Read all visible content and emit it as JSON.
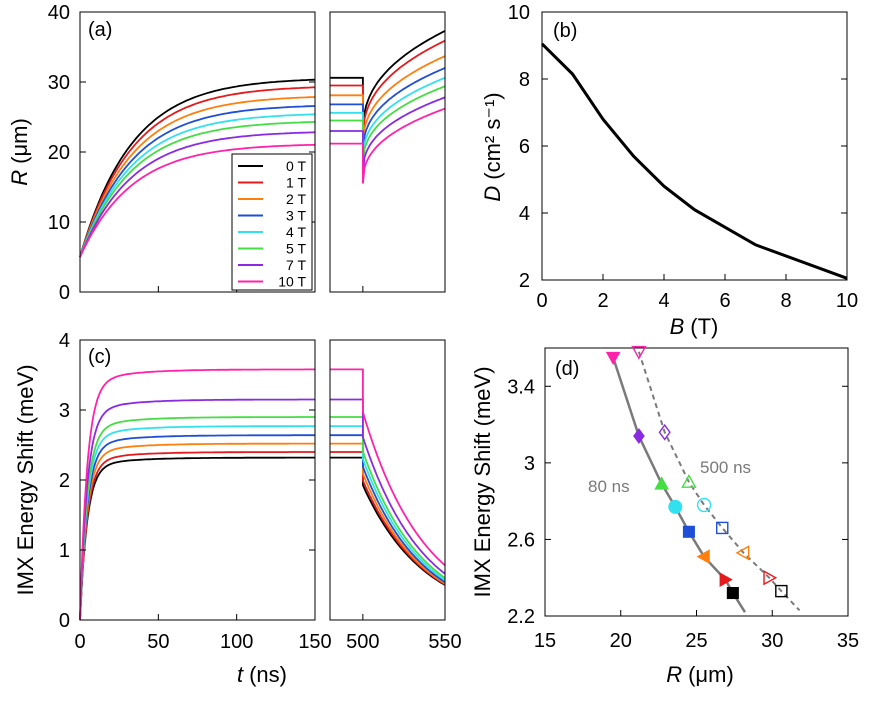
{
  "chart_data": [
    {
      "panel_label": "(a)",
      "type": "line",
      "ylabel_main": "R",
      "ylabel_unit": "(μm)",
      "ylim": [
        0,
        40
      ],
      "yticks": [
        "0",
        "10",
        "20",
        "30",
        "40"
      ],
      "xlim_left": [
        0,
        150
      ],
      "xlim_right": [
        480,
        550
      ],
      "legend": {
        "placement": "lower-right-of-left-panel",
        "entries": [
          "0 T",
          "1 T",
          "2 T",
          "3 T",
          "4 T",
          "5 T",
          "7 T",
          "10 T"
        ]
      },
      "series": [
        {
          "name": "0 T",
          "color": "#000000",
          "R_start": 5,
          "R_plateau": 30.6,
          "R_dip": 22.5,
          "R_end": 37.3
        },
        {
          "name": "1 T",
          "color": "#e41a1c",
          "R_start": 5,
          "R_plateau": 29.5,
          "R_dip": 21.7,
          "R_end": 35.9
        },
        {
          "name": "2 T",
          "color": "#ff7f0e",
          "R_start": 5,
          "R_plateau": 28.1,
          "R_dip": 20.6,
          "R_end": 33.7
        },
        {
          "name": "3 T",
          "color": "#1f4fd6",
          "R_start": 5,
          "R_plateau": 26.8,
          "R_dip": 19.7,
          "R_end": 32.0
        },
        {
          "name": "4 T",
          "color": "#33e0ee",
          "R_start": 5,
          "R_plateau": 25.6,
          "R_dip": 18.8,
          "R_end": 30.6
        },
        {
          "name": "5 T",
          "color": "#44dd44",
          "R_start": 5,
          "R_plateau": 24.5,
          "R_dip": 18.0,
          "R_end": 29.4
        },
        {
          "name": "7 T",
          "color": "#8a2be2",
          "R_start": 5,
          "R_plateau": 23.0,
          "R_dip": 16.9,
          "R_end": 27.8
        },
        {
          "name": "10 T",
          "color": "#ff22aa",
          "R_start": 5,
          "R_plateau": 21.2,
          "R_dip": 15.5,
          "R_end": 26.2
        }
      ]
    },
    {
      "panel_label": "(b)",
      "type": "line",
      "ylabel_main": "D",
      "ylabel_unit": "(cm² s⁻¹)",
      "xlabel_main": "B",
      "xlabel_unit": "(T)",
      "xlim": [
        0,
        10
      ],
      "ylim": [
        2,
        10
      ],
      "xticks": [
        "0",
        "2",
        "4",
        "6",
        "8",
        "10"
      ],
      "yticks": [
        "2",
        "4",
        "6",
        "8",
        "10"
      ],
      "x": [
        0,
        1,
        2,
        3,
        4,
        5,
        7,
        10
      ],
      "y": [
        9.05,
        8.15,
        6.8,
        5.7,
        4.8,
        4.1,
        3.05,
        2.05
      ]
    },
    {
      "panel_label": "(c)",
      "type": "line",
      "ylabel": "IMX Energy Shift (meV)",
      "xlabel_main": "t",
      "xlabel_unit": "(ns)",
      "ylim": [
        0,
        4
      ],
      "yticks": [
        "0",
        "1",
        "2",
        "3",
        "4"
      ],
      "xlim_left": [
        0,
        150
      ],
      "xlim_right": [
        480,
        550
      ],
      "xticks_left": [
        "0",
        "50",
        "100",
        "150"
      ],
      "xticks_right": [
        "500",
        "550"
      ],
      "series": [
        {
          "name": "0 T",
          "color": "#000000",
          "plateau": 2.32,
          "end": 0.5
        },
        {
          "name": "1 T",
          "color": "#e41a1c",
          "plateau": 2.4,
          "end": 0.51
        },
        {
          "name": "2 T",
          "color": "#ff7f0e",
          "plateau": 2.52,
          "end": 0.52
        },
        {
          "name": "3 T",
          "color": "#1f4fd6",
          "plateau": 2.64,
          "end": 0.54
        },
        {
          "name": "4 T",
          "color": "#33e0ee",
          "plateau": 2.77,
          "end": 0.57
        },
        {
          "name": "5 T",
          "color": "#44dd44",
          "plateau": 2.9,
          "end": 0.6
        },
        {
          "name": "7 T",
          "color": "#8a2be2",
          "plateau": 3.15,
          "end": 0.66
        },
        {
          "name": "10 T",
          "color": "#ff22aa",
          "plateau": 3.58,
          "end": 0.78
        }
      ]
    },
    {
      "panel_label": "(d)",
      "type": "scatter",
      "ylabel": "IMX Energy Shift (meV)",
      "xlabel_main": "R",
      "xlabel_unit": "(μm)",
      "xlim": [
        15,
        35
      ],
      "ylim": [
        2.2,
        3.6
      ],
      "xticks": [
        "15",
        "20",
        "25",
        "30",
        "35"
      ],
      "yticks": [
        "2.2",
        "2.6",
        "3",
        "3.4"
      ],
      "annotations": [
        "80 ns",
        "500 ns"
      ],
      "series": [
        {
          "name": "80 ns",
          "style": "filled",
          "curve": "solid",
          "points": [
            {
              "R": 27.4,
              "E": 2.32,
              "B": "0 T",
              "color": "#000000",
              "marker": "square"
            },
            {
              "R": 26.9,
              "E": 2.39,
              "B": "1 T",
              "color": "#e41a1c",
              "marker": "triangle-right"
            },
            {
              "R": 25.5,
              "E": 2.51,
              "B": "2 T",
              "color": "#ff7f0e",
              "marker": "triangle-left"
            },
            {
              "R": 24.5,
              "E": 2.64,
              "B": "3 T",
              "color": "#1f4fd6",
              "marker": "square"
            },
            {
              "R": 23.6,
              "E": 2.77,
              "B": "4 T",
              "color": "#33e0ee",
              "marker": "circle"
            },
            {
              "R": 22.7,
              "E": 2.89,
              "B": "5 T",
              "color": "#44dd44",
              "marker": "triangle-up"
            },
            {
              "R": 21.2,
              "E": 3.14,
              "B": "7 T",
              "color": "#8a2be2",
              "marker": "diamond"
            },
            {
              "R": 19.5,
              "E": 3.55,
              "B": "10 T",
              "color": "#ff22aa",
              "marker": "triangle-down"
            }
          ]
        },
        {
          "name": "500 ns",
          "style": "open",
          "curve": "dashed",
          "points": [
            {
              "R": 30.6,
              "E": 2.33,
              "B": "0 T",
              "color": "#000000",
              "marker": "square"
            },
            {
              "R": 29.8,
              "E": 2.4,
              "B": "1 T",
              "color": "#e41a1c",
              "marker": "triangle-right"
            },
            {
              "R": 28.1,
              "E": 2.53,
              "B": "2 T",
              "color": "#ff7f0e",
              "marker": "triangle-left"
            },
            {
              "R": 26.7,
              "E": 2.66,
              "B": "3 T",
              "color": "#1f4fd6",
              "marker": "square"
            },
            {
              "R": 25.5,
              "E": 2.78,
              "B": "4 T",
              "color": "#33e0ee",
              "marker": "circle"
            },
            {
              "R": 24.5,
              "E": 2.9,
              "B": "5 T",
              "color": "#44dd44",
              "marker": "triangle-up"
            },
            {
              "R": 22.9,
              "E": 3.16,
              "B": "7 T",
              "color": "#8a2be2",
              "marker": "diamond"
            },
            {
              "R": 21.2,
              "E": 3.58,
              "B": "10 T",
              "color": "#ff22aa",
              "marker": "triangle-down"
            }
          ]
        }
      ]
    }
  ]
}
